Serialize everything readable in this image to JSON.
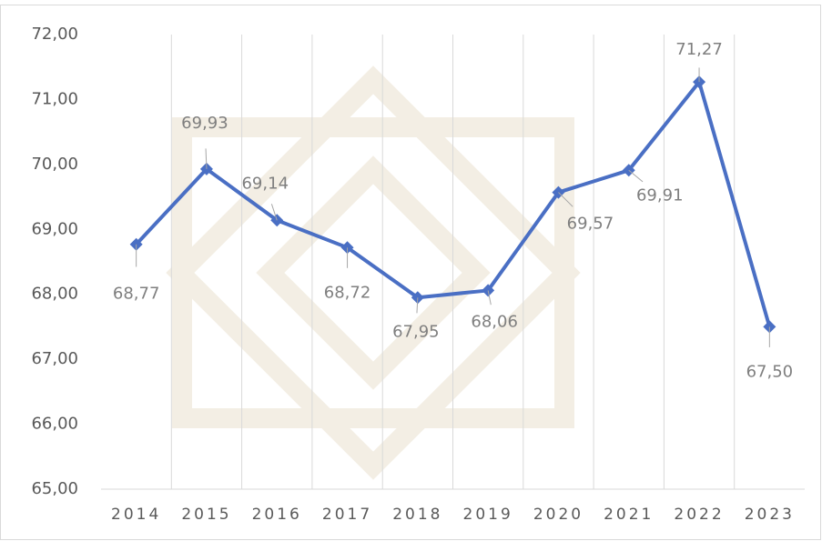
{
  "chart_data": {
    "type": "line",
    "categories": [
      "2014",
      "2015",
      "2016",
      "2017",
      "2018",
      "2019",
      "2020",
      "2021",
      "2022",
      "2023"
    ],
    "series": [
      {
        "color": "#4a6fc4",
        "values": [
          68.77,
          69.93,
          69.14,
          68.72,
          67.95,
          68.06,
          69.57,
          69.91,
          71.27,
          67.5
        ],
        "value_labels": [
          "68,77",
          "69,93",
          "69,14",
          "68,72",
          "67,95",
          "68,06",
          "69,57",
          "69,91",
          "71,27",
          "67,50"
        ]
      }
    ],
    "ylim": [
      65,
      72
    ],
    "yticks": [
      {
        "value": 65,
        "label": "65,00"
      },
      {
        "value": 66,
        "label": "66,00"
      },
      {
        "value": 67,
        "label": "67,00"
      },
      {
        "value": 68,
        "label": "68,00"
      },
      {
        "value": 69,
        "label": "69,00"
      },
      {
        "value": 70,
        "label": "70,00"
      },
      {
        "value": 71,
        "label": "71,00"
      },
      {
        "value": 72,
        "label": "72,00"
      }
    ],
    "grid": true
  }
}
